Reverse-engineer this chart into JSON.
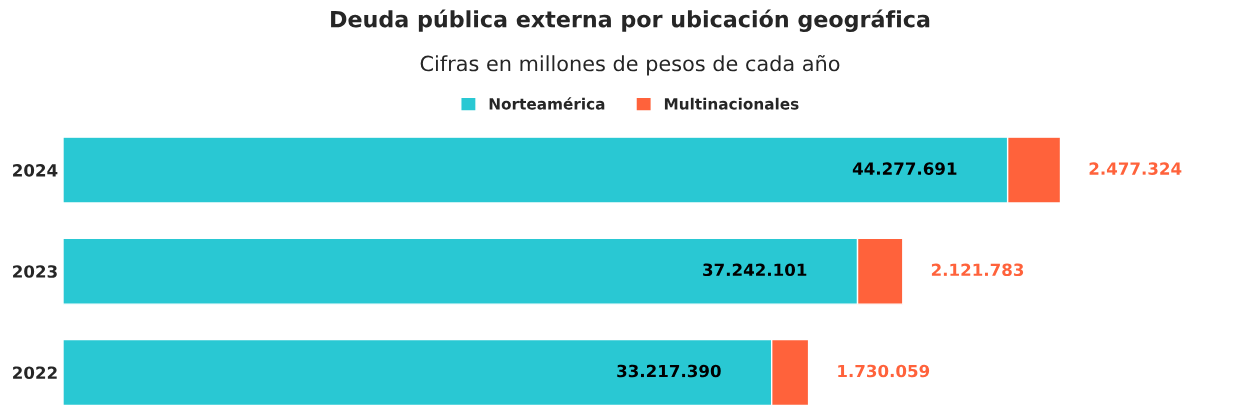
{
  "chart_data": {
    "type": "bar",
    "orientation": "horizontal",
    "stacked": true,
    "title": "Deuda pública externa por ubicación geográfica",
    "subtitle": "Cifras en millones de pesos de cada año",
    "categories": [
      "2024",
      "2023",
      "2022"
    ],
    "series": [
      {
        "name": "Norteamérica",
        "color": "#29c8d3",
        "values": [
          44277691,
          37242101,
          33217390
        ],
        "value_labels": [
          "44.277.691",
          "37.242.101",
          "33.217.390"
        ]
      },
      {
        "name": "Multinacionales",
        "color": "#ff623b",
        "values": [
          2477324,
          2121783,
          1730059
        ],
        "value_labels": [
          "2.477.324",
          "2.121.783",
          "1.730.059"
        ]
      }
    ],
    "legend": "top",
    "grid": false
  }
}
